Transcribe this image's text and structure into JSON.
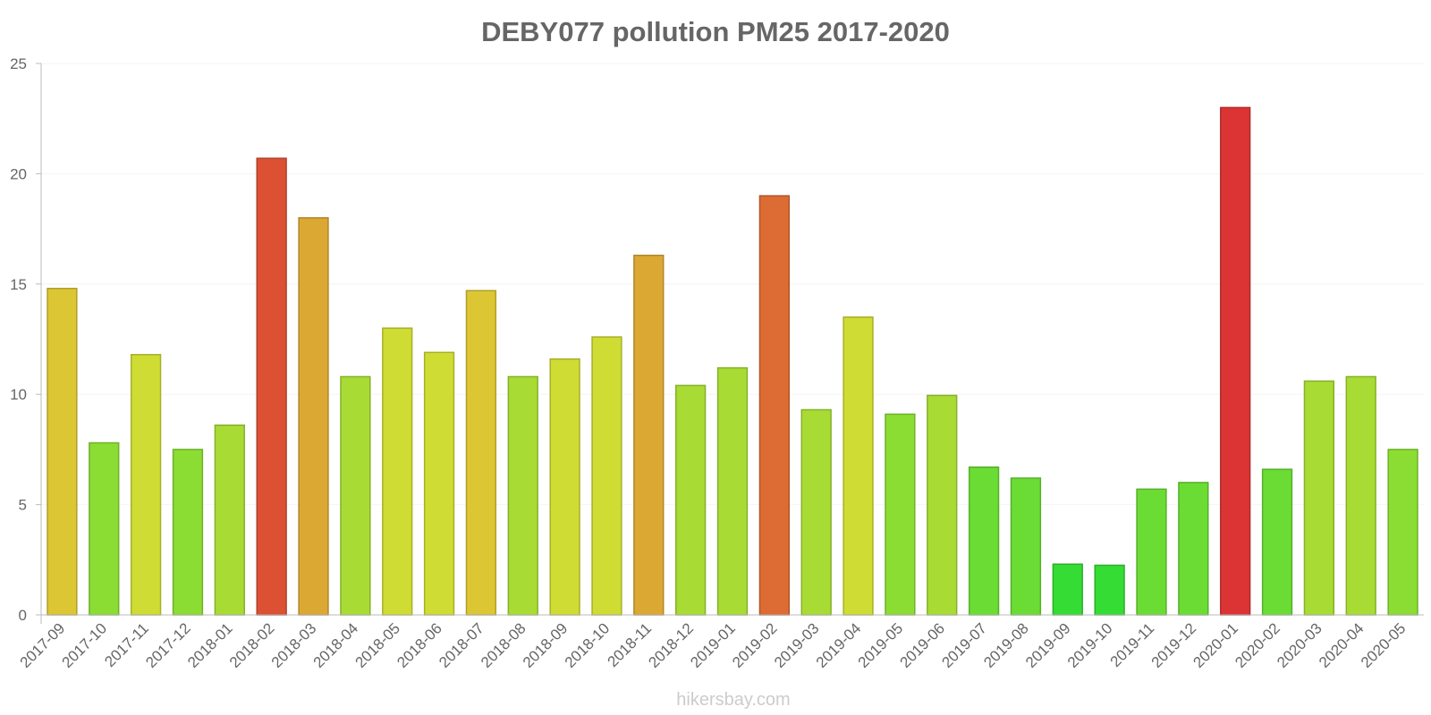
{
  "chart_data": {
    "type": "bar",
    "title": "DEBY077 pollution PM25 2017-2020",
    "xlabel": "",
    "ylabel": "",
    "ylim": [
      0,
      25
    ],
    "yticks": [
      "0",
      "5",
      "10",
      "15",
      "20",
      "25"
    ],
    "grid": true,
    "categories": [
      "2017-09",
      "2017-10",
      "2017-11",
      "2017-12",
      "2018-01",
      "2018-02",
      "2018-03",
      "2018-04",
      "2018-05",
      "2018-06",
      "2018-07",
      "2018-08",
      "2018-09",
      "2018-10",
      "2018-11",
      "2018-12",
      "2019-01",
      "2019-02",
      "2019-03",
      "2019-04",
      "2019-05",
      "2019-06",
      "2019-07",
      "2019-08",
      "2019-09",
      "2019-10",
      "2019-11",
      "2019-12",
      "2020-01",
      "2020-02",
      "2020-03",
      "2020-04",
      "2020-05"
    ],
    "values": [
      14.8,
      7.8,
      11.8,
      7.5,
      8.6,
      20.7,
      18,
      10.8,
      13,
      11.9,
      14.7,
      10.8,
      11.6,
      12.6,
      16.3,
      10.4,
      11.2,
      19,
      9.3,
      13.5,
      9.1,
      9.95,
      6.7,
      6.2,
      2.3,
      2.25,
      5.7,
      6,
      23,
      6.6,
      10.6,
      10.8,
      7.5
    ],
    "colors": [
      "#dcc634",
      "#8bdd33",
      "#cfdc34",
      "#8bdd33",
      "#a8dc34",
      "#dc5034",
      "#dca834",
      "#a8dc34",
      "#cfdc34",
      "#cfdc34",
      "#dcc634",
      "#a8dc34",
      "#cfdc34",
      "#cfdc34",
      "#dca834",
      "#a8dc34",
      "#a8dc34",
      "#dc6c34",
      "#a8dc34",
      "#cfdc34",
      "#8bdd33",
      "#a8dc34",
      "#6bdc34",
      "#6bdc34",
      "#34dc34",
      "#34dc34",
      "#6bdc34",
      "#6bdc34",
      "#dc3434",
      "#6bdc34",
      "#a8dc34",
      "#a8dc34",
      "#8bdd33"
    ]
  },
  "watermark": "hikersbay.com"
}
